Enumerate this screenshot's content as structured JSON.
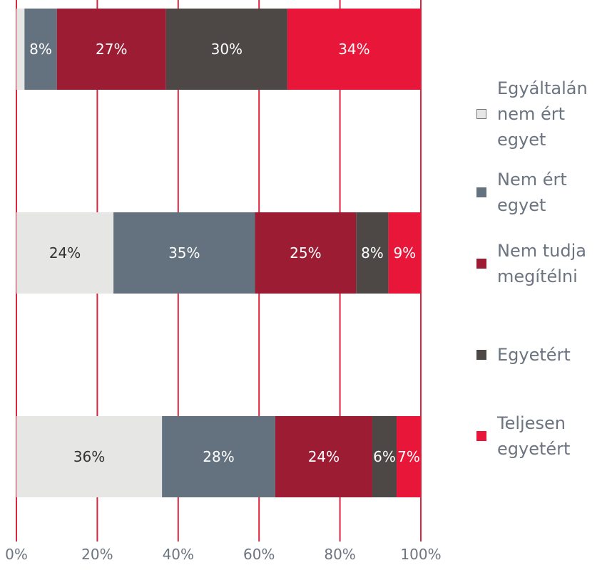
{
  "chart_data": {
    "type": "stacked_barh",
    "categories": [
      null,
      null,
      null
    ],
    "series": [
      {
        "name": "Egyáltalán nem ért egyet",
        "color": "#e6e6e4",
        "values": [
          2,
          24,
          36
        ],
        "value_labels": [
          null,
          "24%",
          "36%"
        ]
      },
      {
        "name": "Nem ért egyet",
        "color": "#64727f",
        "values": [
          8,
          35,
          28
        ],
        "value_labels": [
          "8%",
          "35%",
          "28%"
        ]
      },
      {
        "name": "Nem tudja megítélni",
        "color": "#9b1c33",
        "values": [
          27,
          25,
          24
        ],
        "value_labels": [
          "27%",
          "25%",
          "24%"
        ]
      },
      {
        "name": "Egyetért",
        "color": "#4d4846",
        "values": [
          30,
          8,
          6
        ],
        "value_labels": [
          "30%",
          "8%",
          "6%"
        ]
      },
      {
        "name": "Teljesen egyetért",
        "color": "#e8173a",
        "values": [
          34,
          9,
          7
        ],
        "value_labels": [
          "34%",
          "9%",
          "7%"
        ]
      }
    ],
    "xlim": [
      0,
      100
    ],
    "xticks": [
      {
        "value": 0,
        "label": "0%"
      },
      {
        "value": 20,
        "label": "20%"
      },
      {
        "value": 40,
        "label": "40%"
      },
      {
        "value": 60,
        "label": "60%"
      },
      {
        "value": 80,
        "label": "80%"
      },
      {
        "value": 100,
        "label": "100%"
      }
    ],
    "grid": true,
    "grid_color": "#d9263f",
    "legend": "right"
  }
}
